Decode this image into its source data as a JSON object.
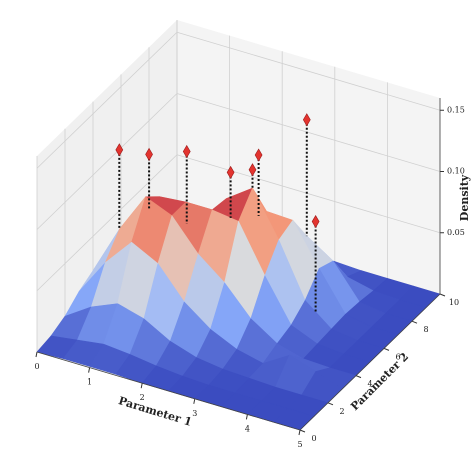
{
  "chart_data": {
    "type": "surface3d",
    "xlabel": "Parameter 1",
    "ylabel": "Parameter 2",
    "zlabel": "Density",
    "xlim": [
      0,
      5
    ],
    "ylim": [
      0,
      10
    ],
    "zlim": [
      0,
      0.16
    ],
    "xticks": [
      0,
      1,
      2,
      3,
      4,
      5
    ],
    "yticks": [
      0,
      2,
      4,
      6,
      8,
      10
    ],
    "zticks": [
      0.05,
      {
        "value": 0.1,
        "label": "0.10"
      },
      0.15
    ],
    "grid": true,
    "colormap": "coolwarm",
    "surface": {
      "x": [
        0,
        0.5,
        1,
        1.5,
        2,
        2.5,
        3,
        3.5,
        4,
        4.5,
        5
      ],
      "y": [
        0,
        1,
        2,
        3,
        4,
        5,
        6,
        7,
        8,
        9,
        10
      ],
      "z": [
        [
          0,
          0.001,
          0.001,
          0.001,
          0,
          0,
          0,
          0,
          0,
          0,
          0
        ],
        [
          0.002,
          0.005,
          0.008,
          0.006,
          0.003,
          0.001,
          0,
          0,
          0,
          0,
          0
        ],
        [
          0.007,
          0.021,
          0.03,
          0.024,
          0.012,
          0.005,
          0.002,
          0.001,
          0,
          0,
          0
        ],
        [
          0.016,
          0.046,
          0.069,
          0.058,
          0.033,
          0.017,
          0.007,
          0.002,
          0.015,
          0.008,
          0
        ],
        [
          0.022,
          0.062,
          0.095,
          0.086,
          0.061,
          0.044,
          0.021,
          0.007,
          0.001,
          0,
          0
        ],
        [
          0.018,
          0.053,
          0.084,
          0.086,
          0.086,
          0.083,
          0.045,
          0.011,
          0.002,
          0,
          0
        ],
        [
          0.01,
          0.028,
          0.048,
          0.06,
          0.084,
          0.099,
          0.063,
          0.02,
          0.003,
          0,
          0
        ],
        [
          0.003,
          0.009,
          0.018,
          0.027,
          0.05,
          0.069,
          0.068,
          0.035,
          0.004,
          0,
          0
        ],
        [
          0.001,
          0.003,
          0.005,
          0.009,
          0.017,
          0.028,
          0.044,
          0.03,
          0.003,
          0,
          0
        ],
        [
          0,
          0,
          0.001,
          0.001,
          0.003,
          0.005,
          0.009,
          0.006,
          0.001,
          0,
          0
        ],
        [
          0,
          0,
          0,
          0,
          0,
          0,
          0.001,
          0,
          0,
          0,
          0
        ]
      ]
    },
    "points": {
      "color": "#e3342f",
      "x": [
        0.5,
        0.8,
        1.25,
        2.35,
        2.5,
        2.35,
        3.0,
        3.7
      ],
      "y": [
        4,
        5,
        6,
        5,
        6,
        7,
        8,
        6
      ],
      "z": [
        0.127,
        0.116,
        0.113,
        0.121,
        0.114,
        0.113,
        0.139,
        0.087
      ]
    }
  }
}
